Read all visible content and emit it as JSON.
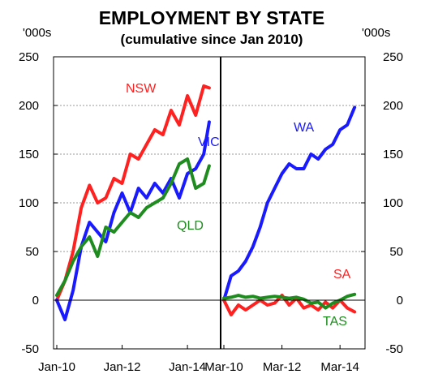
{
  "chart_data": {
    "type": "line",
    "title": "EMPLOYMENT BY STATE",
    "subtitle": "(cumulative since Jan 2010)",
    "y_unit_left": "'000s",
    "y_unit_right": "'000s",
    "ylim": [
      -50,
      250
    ],
    "yticks": [
      -50,
      0,
      50,
      100,
      150,
      200,
      250
    ],
    "grid": "horizontal dashed",
    "colors": {
      "NSW": "#ff2020",
      "VIC": "#1a1aff",
      "QLD": "#1e8c1e",
      "WA": "#1a1aff",
      "SA": "#ff2020",
      "TAS": "#1e8c1e"
    },
    "panels": [
      {
        "id": "left",
        "xlim": [
          "2010-01",
          "2014-12"
        ],
        "xticks": [
          {
            "date": "2010-01",
            "label": "Jan-10"
          },
          {
            "date": "2012-01",
            "label": "Jan-12"
          },
          {
            "date": "2014-01",
            "label": "Jan-14"
          }
        ],
        "series": [
          {
            "name": "NSW",
            "x": [
              "2010-01",
              "2010-04",
              "2010-07",
              "2010-10",
              "2011-01",
              "2011-04",
              "2011-07",
              "2011-10",
              "2012-01",
              "2012-04",
              "2012-07",
              "2012-10",
              "2013-01",
              "2013-04",
              "2013-07",
              "2013-10",
              "2014-01",
              "2014-04",
              "2014-07",
              "2014-09"
            ],
            "values": [
              0,
              20,
              50,
              95,
              118,
              100,
              105,
              125,
              120,
              150,
              145,
              160,
              175,
              170,
              195,
              180,
              210,
              190,
              220,
              218
            ]
          },
          {
            "name": "VIC",
            "x": [
              "2010-01",
              "2010-04",
              "2010-07",
              "2010-10",
              "2011-01",
              "2011-04",
              "2011-07",
              "2011-10",
              "2012-01",
              "2012-04",
              "2012-07",
              "2012-10",
              "2013-01",
              "2013-04",
              "2013-07",
              "2013-10",
              "2014-01",
              "2014-04",
              "2014-07",
              "2014-09"
            ],
            "values": [
              0,
              -20,
              10,
              55,
              80,
              70,
              60,
              90,
              110,
              90,
              115,
              105,
              120,
              110,
              125,
              105,
              130,
              135,
              150,
              183
            ]
          },
          {
            "name": "QLD",
            "x": [
              "2010-01",
              "2010-04",
              "2010-07",
              "2010-10",
              "2011-01",
              "2011-04",
              "2011-07",
              "2011-10",
              "2012-01",
              "2012-04",
              "2012-07",
              "2012-10",
              "2013-01",
              "2013-04",
              "2013-07",
              "2013-10",
              "2014-01",
              "2014-04",
              "2014-07",
              "2014-09"
            ],
            "values": [
              5,
              20,
              40,
              55,
              65,
              45,
              75,
              70,
              80,
              90,
              85,
              95,
              100,
              105,
              120,
              140,
              145,
              115,
              120,
              138
            ]
          }
        ]
      },
      {
        "id": "right",
        "xlim": [
          "2010-03",
          "2014-12"
        ],
        "xticks": [
          {
            "date": "2010-03",
            "label": "Mar-10"
          },
          {
            "date": "2012-03",
            "label": "Mar-12"
          },
          {
            "date": "2014-03",
            "label": "Mar-14"
          }
        ],
        "series": [
          {
            "name": "WA",
            "x": [
              "2010-03",
              "2010-06",
              "2010-09",
              "2010-12",
              "2011-03",
              "2011-06",
              "2011-09",
              "2011-12",
              "2012-03",
              "2012-06",
              "2012-09",
              "2012-12",
              "2013-03",
              "2013-06",
              "2013-09",
              "2013-12",
              "2014-03",
              "2014-06",
              "2014-09"
            ],
            "values": [
              0,
              25,
              30,
              40,
              55,
              75,
              100,
              115,
              130,
              140,
              135,
              135,
              150,
              145,
              155,
              160,
              175,
              180,
              198
            ]
          },
          {
            "name": "SA",
            "x": [
              "2010-03",
              "2010-06",
              "2010-09",
              "2010-12",
              "2011-03",
              "2011-06",
              "2011-09",
              "2011-12",
              "2012-03",
              "2012-06",
              "2012-09",
              "2012-12",
              "2013-03",
              "2013-06",
              "2013-09",
              "2013-12",
              "2014-03",
              "2014-06",
              "2014-09"
            ],
            "values": [
              0,
              -15,
              -5,
              -10,
              -5,
              0,
              -5,
              -3,
              5,
              -5,
              2,
              -8,
              -5,
              -10,
              -2,
              -8,
              0,
              -8,
              -12
            ]
          },
          {
            "name": "TAS",
            "x": [
              "2010-03",
              "2010-06",
              "2010-09",
              "2010-12",
              "2011-03",
              "2011-06",
              "2011-09",
              "2011-12",
              "2012-03",
              "2012-06",
              "2012-09",
              "2012-12",
              "2013-03",
              "2013-06",
              "2013-09",
              "2013-12",
              "2014-03",
              "2014-06",
              "2014-09"
            ],
            "values": [
              2,
              3,
              5,
              3,
              4,
              2,
              3,
              4,
              3,
              2,
              3,
              1,
              -3,
              -2,
              -8,
              -3,
              0,
              4,
              6
            ]
          }
        ]
      }
    ],
    "labels": [
      {
        "text": "NSW",
        "color": "#ff2020"
      },
      {
        "text": "VIC",
        "color": "#1a1aff"
      },
      {
        "text": "QLD",
        "color": "#1e8c1e"
      },
      {
        "text": "WA",
        "color": "#1a1aff"
      },
      {
        "text": "SA",
        "color": "#ff2020"
      },
      {
        "text": "TAS",
        "color": "#1e8c1e"
      }
    ]
  }
}
